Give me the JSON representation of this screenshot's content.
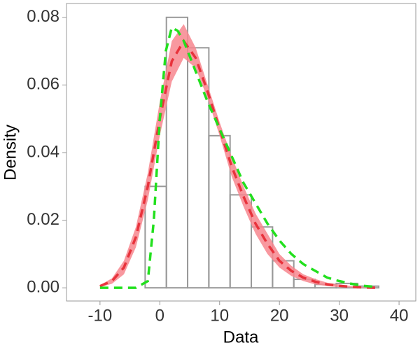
{
  "chart_data": {
    "type": "histogram",
    "xlabel": "Data",
    "ylabel": "Density",
    "bins": [
      -13.1,
      -9.55,
      -6.0,
      -2.45,
      1.1,
      4.65,
      8.2,
      11.75,
      15.3,
      18.85,
      22.4,
      25.95,
      29.5,
      33.05,
      36.6,
      40.15
    ],
    "values": [
      0,
      0,
      0,
      0.03,
      0.08,
      0.071,
      0.045,
      0.0275,
      0.018,
      0.008,
      0.0025,
      0.001,
      0.0013,
      0.0005,
      0
    ],
    "bar_color": "#999999",
    "band": {
      "color": "#f7868e",
      "x": [
        -10,
        -8,
        -6,
        -4,
        -2,
        0,
        2,
        4,
        6,
        8,
        10,
        12,
        14,
        16,
        18,
        20,
        22,
        24,
        26,
        28,
        30,
        32,
        34,
        36
      ],
      "lower": [
        0.0002,
        0.0012,
        0.004,
        0.012,
        0.026,
        0.045,
        0.061,
        0.068,
        0.065,
        0.056,
        0.045,
        0.033,
        0.024,
        0.016,
        0.01,
        0.006,
        0.0035,
        0.002,
        0.001,
        0.0005,
        0.0002,
        0.0001,
        0,
        0
      ],
      "upper": [
        0.0008,
        0.0028,
        0.008,
        0.018,
        0.034,
        0.055,
        0.073,
        0.078,
        0.071,
        0.06,
        0.049,
        0.039,
        0.03,
        0.022,
        0.016,
        0.01,
        0.0065,
        0.004,
        0.0026,
        0.0015,
        0.001,
        0.0005,
        0.0002,
        0.0001
      ]
    },
    "series": [
      {
        "color": "#e8333c",
        "x": [
          -10,
          -8,
          -6,
          -4,
          -2,
          0,
          2,
          4,
          6,
          8,
          10,
          12,
          14,
          16,
          18,
          20,
          22,
          24,
          26,
          28,
          30,
          32,
          34,
          36
        ],
        "values": [
          0.0005,
          0.002,
          0.006,
          0.015,
          0.03,
          0.05,
          0.067,
          0.073,
          0.068,
          0.058,
          0.047,
          0.036,
          0.027,
          0.019,
          0.013,
          0.008,
          0.005,
          0.003,
          0.0018,
          0.001,
          0.0006,
          0.0003,
          0.0001,
          0
        ]
      },
      {
        "color": "#22e01e",
        "x": [
          -10,
          -4,
          -2,
          -1,
          0,
          1,
          2,
          3,
          4,
          6,
          8,
          10,
          12,
          14,
          16,
          18,
          20,
          22,
          24,
          26,
          28,
          30,
          32,
          34,
          36
        ],
        "values": [
          0,
          0,
          0.002,
          0.02,
          0.05,
          0.07,
          0.077,
          0.076,
          0.073,
          0.064,
          0.055,
          0.047,
          0.039,
          0.031,
          0.025,
          0.019,
          0.014,
          0.01,
          0.007,
          0.005,
          0.003,
          0.002,
          0.0012,
          0.0006,
          0.0003
        ]
      }
    ],
    "xlim": [
      -15.6,
      42.8
    ],
    "ylim": [
      -0.0039,
      0.0841
    ],
    "xticks": [
      -10,
      0,
      10,
      20,
      30,
      40
    ],
    "yticks": [
      {
        "value": 0,
        "label": "0.00"
      },
      {
        "value": 0.02,
        "label": "0.02"
      },
      {
        "value": 0.04,
        "label": "0.04"
      },
      {
        "value": 0.06,
        "label": "0.06"
      },
      {
        "value": 0.08,
        "label": "0.08"
      }
    ]
  }
}
